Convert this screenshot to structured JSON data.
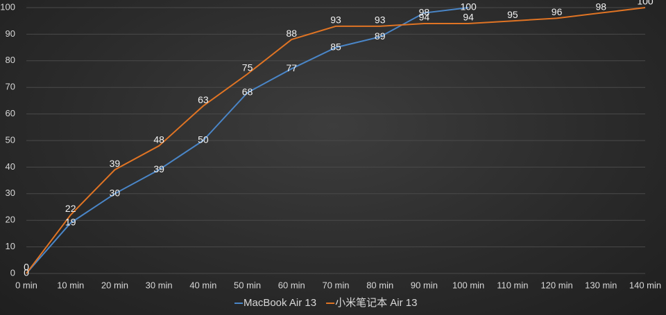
{
  "chart_data": {
    "type": "line",
    "categories": [
      "0 min",
      "10 min",
      "20 min",
      "30 min",
      "40 min",
      "50 min",
      "60 min",
      "70 min",
      "80 min",
      "90 min",
      "100 min",
      "110 min",
      "120 min",
      "130 min",
      "140 min"
    ],
    "series": [
      {
        "name": "MacBook Air 13",
        "color": "#4a86c8",
        "values": [
          0,
          19,
          30,
          39,
          50,
          68,
          77,
          85,
          89,
          98,
          100,
          null,
          null,
          null,
          null
        ]
      },
      {
        "name": "小米笔记本 Air 13",
        "color": "#e07424",
        "values": [
          0,
          22,
          39,
          48,
          63,
          75,
          88,
          93,
          93,
          94,
          94,
          95,
          96,
          98,
          100
        ]
      }
    ],
    "ylim": [
      0,
      100
    ],
    "yticks": [
      0,
      10,
      20,
      30,
      40,
      50,
      60,
      70,
      80,
      90,
      100
    ],
    "grid": true,
    "legend": "bottom"
  }
}
